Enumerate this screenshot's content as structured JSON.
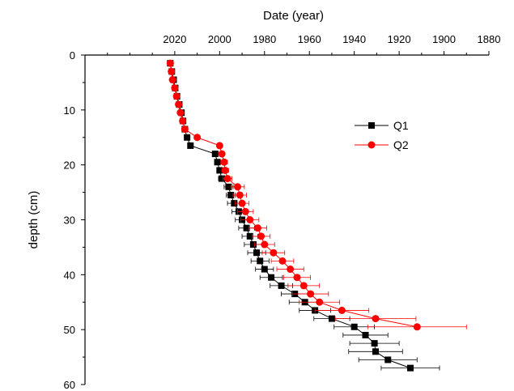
{
  "chart_data": {
    "type": "scatter",
    "x_axis": {
      "label": "Date (year)",
      "position": "top",
      "range": [
        2060,
        1880
      ],
      "ticks": [
        2020,
        2000,
        1980,
        1960,
        1940,
        1920,
        1900,
        1880
      ],
      "reversed": true
    },
    "y_axis": {
      "label": "depth (cm)",
      "range": [
        0,
        60
      ],
      "ticks": [
        0,
        10,
        20,
        30,
        40,
        50,
        60
      ],
      "reversed": true
    },
    "grid": false,
    "legend_position": "top-right",
    "series": [
      {
        "name": "Q1",
        "color": "#000000",
        "marker": "square",
        "points": [
          {
            "depth": 1.5,
            "year": 2022,
            "err": 0
          },
          {
            "depth": 3,
            "year": 2021.3,
            "err": 0
          },
          {
            "depth": 4.5,
            "year": 2020.5,
            "err": 0
          },
          {
            "depth": 6,
            "year": 2019.8,
            "err": 0
          },
          {
            "depth": 7.5,
            "year": 2019,
            "err": 0
          },
          {
            "depth": 9,
            "year": 2018,
            "err": 0
          },
          {
            "depth": 10.5,
            "year": 2017,
            "err": 0
          },
          {
            "depth": 12,
            "year": 2016.3,
            "err": 0
          },
          {
            "depth": 13.5,
            "year": 2015.5,
            "err": 0
          },
          {
            "depth": 15,
            "year": 2014.5,
            "err": 0
          },
          {
            "depth": 16.5,
            "year": 2013,
            "err": 0
          },
          {
            "depth": 18,
            "year": 2002,
            "err": 1
          },
          {
            "depth": 19.5,
            "year": 2001,
            "err": 1
          },
          {
            "depth": 21,
            "year": 2000,
            "err": 1
          },
          {
            "depth": 22.5,
            "year": 1999,
            "err": 1.5
          },
          {
            "depth": 24,
            "year": 1996,
            "err": 2
          },
          {
            "depth": 25.5,
            "year": 1995,
            "err": 2
          },
          {
            "depth": 27,
            "year": 1993.5,
            "err": 3
          },
          {
            "depth": 28.5,
            "year": 1991.5,
            "err": 3
          },
          {
            "depth": 30,
            "year": 1990,
            "err": 3
          },
          {
            "depth": 31.5,
            "year": 1988,
            "err": 3.5
          },
          {
            "depth": 33,
            "year": 1986.5,
            "err": 3.5
          },
          {
            "depth": 34.5,
            "year": 1985,
            "err": 4
          },
          {
            "depth": 36,
            "year": 1983.5,
            "err": 4
          },
          {
            "depth": 37.5,
            "year": 1982,
            "err": 4
          },
          {
            "depth": 39,
            "year": 1980,
            "err": 4
          },
          {
            "depth": 40.5,
            "year": 1977,
            "err": 5
          },
          {
            "depth": 42,
            "year": 1972.5,
            "err": 5
          },
          {
            "depth": 43.5,
            "year": 1966.5,
            "err": 6
          },
          {
            "depth": 45,
            "year": 1962,
            "err": 7
          },
          {
            "depth": 46.5,
            "year": 1957.5,
            "err": 7
          },
          {
            "depth": 48,
            "year": 1950,
            "err": 8
          },
          {
            "depth": 49.5,
            "year": 1940,
            "err": 9
          },
          {
            "depth": 51,
            "year": 1935,
            "err": 10
          },
          {
            "depth": 52.5,
            "year": 1931,
            "err": 11
          },
          {
            "depth": 54,
            "year": 1930.5,
            "err": 12
          },
          {
            "depth": 55.5,
            "year": 1925,
            "err": 13
          },
          {
            "depth": 57,
            "year": 1915,
            "err": 13
          }
        ]
      },
      {
        "name": "Q2",
        "color": "#ff0000",
        "marker": "circle",
        "points": [
          {
            "depth": 1.5,
            "year": 2022,
            "err": 0
          },
          {
            "depth": 3,
            "year": 2021.5,
            "err": 0
          },
          {
            "depth": 4.5,
            "year": 2021,
            "err": 0
          },
          {
            "depth": 6,
            "year": 2020,
            "err": 0
          },
          {
            "depth": 7.5,
            "year": 2019.2,
            "err": 0
          },
          {
            "depth": 9,
            "year": 2018.3,
            "err": 0
          },
          {
            "depth": 10.5,
            "year": 2017.5,
            "err": 0
          },
          {
            "depth": 12,
            "year": 2016.5,
            "err": 0
          },
          {
            "depth": 13.5,
            "year": 2015.5,
            "err": 0
          },
          {
            "depth": 15,
            "year": 2010,
            "err": 0
          },
          {
            "depth": 16.5,
            "year": 2000,
            "err": 1
          },
          {
            "depth": 18,
            "year": 1999,
            "err": 1
          },
          {
            "depth": 19.5,
            "year": 1998,
            "err": 1.5
          },
          {
            "depth": 21,
            "year": 1997.5,
            "err": 1.5
          },
          {
            "depth": 22.5,
            "year": 1996.5,
            "err": 2
          },
          {
            "depth": 24,
            "year": 1992,
            "err": 3
          },
          {
            "depth": 25.5,
            "year": 1991,
            "err": 3
          },
          {
            "depth": 27,
            "year": 1990,
            "err": 3
          },
          {
            "depth": 28.5,
            "year": 1988.5,
            "err": 3.5
          },
          {
            "depth": 30,
            "year": 1986.5,
            "err": 4
          },
          {
            "depth": 31.5,
            "year": 1983,
            "err": 4
          },
          {
            "depth": 33,
            "year": 1981.5,
            "err": 4
          },
          {
            "depth": 34.5,
            "year": 1980,
            "err": 4.5
          },
          {
            "depth": 36,
            "year": 1976,
            "err": 5
          },
          {
            "depth": 37.5,
            "year": 1972,
            "err": 5
          },
          {
            "depth": 39,
            "year": 1968.5,
            "err": 6
          },
          {
            "depth": 40.5,
            "year": 1965.5,
            "err": 6
          },
          {
            "depth": 42,
            "year": 1962.5,
            "err": 7
          },
          {
            "depth": 43.5,
            "year": 1959.5,
            "err": 8
          },
          {
            "depth": 45,
            "year": 1955.5,
            "err": 9
          },
          {
            "depth": 46.5,
            "year": 1945.5,
            "err": 12
          },
          {
            "depth": 48,
            "year": 1930.5,
            "err": 18
          },
          {
            "depth": 49.5,
            "year": 1912,
            "err": 22
          }
        ]
      }
    ]
  }
}
